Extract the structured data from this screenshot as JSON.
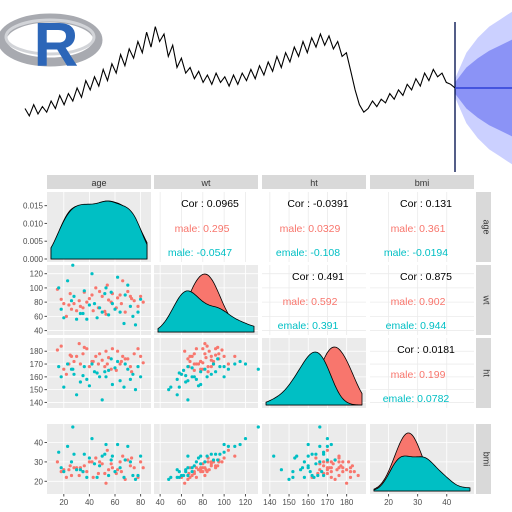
{
  "logo": {
    "text": "R"
  },
  "forecast": {
    "title": ""
  },
  "matrix": {
    "variables": [
      "age",
      "wt",
      "ht",
      "bmi"
    ],
    "axis_ticks": {
      "age": {
        "x": [
          "20",
          "40",
          "60",
          "80"
        ],
        "density_y": [
          "0.000",
          "0.005",
          "0.010",
          "0.015"
        ]
      },
      "wt": {
        "x": [
          "40",
          "60",
          "80",
          "100",
          "120"
        ],
        "y": [
          "40",
          "60",
          "80",
          "100",
          "120"
        ]
      },
      "ht": {
        "x": [
          "140",
          "150",
          "160",
          "170",
          "180"
        ],
        "y": [
          "140",
          "150",
          "160",
          "170",
          "180"
        ]
      },
      "bmi": {
        "x": [
          "20",
          "30",
          "40"
        ],
        "y": [
          "20",
          "30",
          "40"
        ]
      }
    },
    "correlations": [
      {
        "pair": "wt-age",
        "overall": "Cor : 0.0965",
        "male": "male: 0.295",
        "female": "male: -0.0547"
      },
      {
        "pair": "ht-age",
        "overall": "Cor : -0.0391",
        "male": "male: 0.0329",
        "female": "emale: -0.108"
      },
      {
        "pair": "bmi-age",
        "overall": "Cor : 0.131",
        "male": "male: 0.361",
        "female": "male: -0.0194"
      },
      {
        "pair": "ht-wt",
        "overall": "Cor : 0.491",
        "male": "male: 0.592",
        "female": "emale: 0.391"
      },
      {
        "pair": "bmi-wt",
        "overall": "Cor : 0.875",
        "male": "male: 0.902",
        "female": "emale: 0.944"
      },
      {
        "pair": "bmi-ht",
        "overall": "Cor : 0.0181",
        "male": "male: 0.199",
        "female": "emale: 0.0782"
      }
    ]
  },
  "colors": {
    "male": "#F8766D",
    "female": "#00BFC4",
    "panel_bg": "#EBEBEB",
    "strip_bg": "#D9D9D9",
    "forecast_fill_outer": "#C5CBFF",
    "forecast_fill_inner": "#8088F4",
    "forecast_line": "#2E3FD6",
    "logo_ring": "#A8AAB0",
    "logo_letter": "#2C66B8"
  },
  "chart_data": [
    {
      "type": "line",
      "title": "",
      "series": [
        {
          "values": [
            -1.0,
            -1.4,
            -0.8,
            -1.3,
            -0.9,
            -1.2,
            -0.6,
            -1.0,
            -0.3,
            -0.8,
            -0.2,
            -0.6,
            0.1,
            -0.4,
            0.5,
            0.0,
            0.7,
            0.2,
            1.1,
            0.5,
            1.4,
            0.9,
            1.9,
            1.3,
            2.2,
            1.7,
            2.6,
            2.0,
            3.1,
            2.3,
            3.4,
            2.6,
            3.0,
            1.8,
            2.4,
            1.2,
            1.7,
            0.9,
            1.2,
            0.6,
            1.0,
            0.4,
            0.8,
            0.3,
            0.9,
            0.4,
            0.7,
            0.2,
            0.8,
            0.3,
            0.9,
            0.5,
            1.1,
            0.6,
            1.3,
            0.8,
            1.5,
            1.0,
            1.8,
            1.2,
            2.0,
            1.5,
            2.3,
            1.8,
            2.6,
            2.0,
            2.8,
            2.3,
            3.0,
            2.4,
            2.9,
            2.2,
            2.6,
            1.8,
            2.0,
            1.0,
            0.0,
            -0.8,
            -1.2,
            -1.0,
            -0.6,
            -0.9,
            -0.5,
            -0.7,
            -0.2,
            -0.5,
            0.0,
            -0.3,
            0.3,
            0.0,
            0.6,
            0.2,
            0.9,
            0.5,
            1.1,
            0.7,
            0.9,
            0.4,
            0.3,
            0.1
          ]
        },
        {
          "values": [
            0.1,
            0.1,
            0.1,
            0.1,
            0.1,
            0.1
          ]
        }
      ],
      "bands": [
        {
          "level": "outer",
          "lower": [
            -0.4,
            -1.8,
            -2.6,
            -3.2,
            -3.6,
            -4.0
          ],
          "upper": [
            0.6,
            2.0,
            2.8,
            3.4,
            3.8,
            4.2
          ]
        },
        {
          "level": "inner",
          "lower": [
            -0.2,
            -1.0,
            -1.5,
            -1.9,
            -2.2,
            -2.5
          ],
          "upper": [
            0.4,
            1.2,
            1.7,
            2.1,
            2.4,
            2.7
          ]
        }
      ],
      "ylim": [
        -4.2,
        4.4
      ]
    },
    {
      "type": "scatter",
      "title": "",
      "variables": [
        "age",
        "wt",
        "ht",
        "bmi"
      ],
      "groups": [
        "male",
        "female"
      ],
      "ranges": {
        "age": [
          10,
          85
        ],
        "wt": [
          38,
          128
        ],
        "ht": [
          138,
          188
        ],
        "bmi": [
          15,
          48
        ]
      },
      "observations": [
        [
          20,
          78,
          166,
          26,
          0
        ],
        [
          33,
          74,
          170,
          27,
          0
        ],
        [
          25,
          92,
          177,
          28,
          0
        ],
        [
          43,
          68,
          172,
          22,
          0
        ],
        [
          53,
          63,
          180,
          19,
          0
        ],
        [
          61,
          72,
          165,
          24,
          0
        ],
        [
          75,
          82,
          178,
          27,
          0
        ],
        [
          80,
          88,
          176,
          30,
          0
        ],
        [
          15,
          98,
          181,
          30,
          0
        ],
        [
          30,
          68,
          176,
          27,
          0
        ],
        [
          38,
          80,
          182,
          25,
          0
        ],
        [
          47,
          72,
          170,
          24,
          0
        ],
        [
          55,
          83,
          175,
          26,
          0
        ],
        [
          65,
          78,
          172,
          25,
          0
        ],
        [
          72,
          88,
          168,
          28,
          0
        ],
        [
          22,
          60,
          162,
          22,
          0
        ],
        [
          35,
          72,
          178,
          25,
          0
        ],
        [
          42,
          90,
          172,
          30,
          0
        ],
        [
          58,
          92,
          182,
          27,
          0
        ],
        [
          68,
          66,
          174,
          21,
          0
        ],
        [
          18,
          84,
          184,
          25,
          0
        ],
        [
          28,
          78,
          172,
          27,
          0
        ],
        [
          48,
          95,
          178,
          30,
          0
        ],
        [
          52,
          67,
          168,
          24,
          0
        ],
        [
          78,
          74,
          182,
          22,
          0
        ],
        [
          45,
          100,
          176,
          32,
          0
        ],
        [
          32,
          82,
          186,
          23,
          0
        ],
        [
          62,
          86,
          180,
          26,
          0
        ],
        [
          70,
          95,
          174,
          31,
          0
        ],
        [
          26,
          70,
          176,
          23,
          0
        ],
        [
          40,
          85,
          168,
          30,
          0
        ],
        [
          50,
          88,
          173,
          29,
          0
        ],
        [
          57,
          80,
          166,
          29,
          0
        ],
        [
          64,
          90,
          170,
          30,
          0
        ],
        [
          73,
          85,
          164,
          32,
          0
        ],
        [
          36,
          94,
          183,
          28,
          0
        ],
        [
          24,
          76,
          170,
          26,
          0
        ],
        [
          66,
          110,
          176,
          33,
          0
        ],
        [
          54,
          104,
          170,
          36,
          0
        ],
        [
          82,
          80,
          171,
          27,
          0
        ],
        [
          20,
          58,
          152,
          25,
          1
        ],
        [
          38,
          56,
          158,
          22,
          1
        ],
        [
          44,
          78,
          164,
          29,
          1
        ],
        [
          60,
          70,
          167,
          25,
          1
        ],
        [
          74,
          60,
          162,
          23,
          1
        ],
        [
          16,
          100,
          168,
          35,
          1
        ],
        [
          28,
          88,
          162,
          34,
          1
        ],
        [
          33,
          64,
          156,
          26,
          1
        ],
        [
          52,
          92,
          164,
          34,
          1
        ],
        [
          67,
          50,
          152,
          22,
          1
        ],
        [
          23,
          110,
          170,
          38,
          1
        ],
        [
          48,
          72,
          160,
          28,
          1
        ],
        [
          55,
          62,
          165,
          23,
          1
        ],
        [
          70,
          104,
          166,
          38,
          1
        ],
        [
          80,
          84,
          160,
          33,
          1
        ],
        [
          30,
          56,
          146,
          26,
          1
        ],
        [
          42,
          120,
          170,
          42,
          1
        ],
        [
          58,
          78,
          154,
          33,
          1
        ],
        [
          64,
          66,
          157,
          27,
          1
        ],
        [
          76,
          48,
          150,
          21,
          1
        ],
        [
          18,
          70,
          160,
          27,
          1
        ],
        [
          36,
          96,
          168,
          34,
          1
        ],
        [
          46,
          58,
          163,
          22,
          1
        ],
        [
          62,
          115,
          172,
          39,
          1
        ],
        [
          72,
          74,
          158,
          30,
          1
        ],
        [
          26,
          82,
          166,
          30,
          1
        ],
        [
          50,
          66,
          142,
          33,
          1
        ],
        [
          57,
          94,
          174,
          31,
          1
        ],
        [
          68,
          90,
          170,
          31,
          1
        ],
        [
          35,
          64,
          161,
          25,
          1
        ],
        [
          27,
          132,
          166,
          48,
          1
        ],
        [
          53,
          100,
          160,
          39,
          1
        ],
        [
          40,
          76,
          153,
          32,
          1
        ],
        [
          78,
          66,
          168,
          23,
          1
        ]
      ]
    }
  ]
}
